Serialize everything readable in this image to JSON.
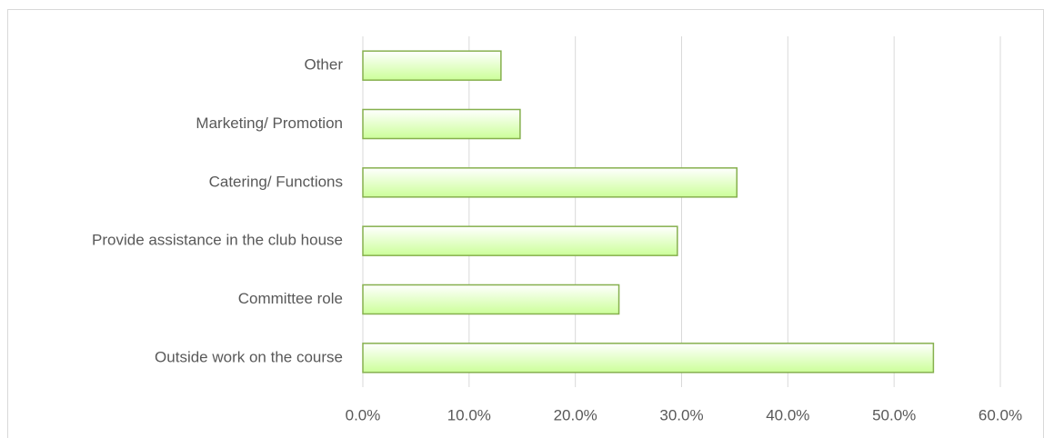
{
  "chart_data": {
    "type": "bar",
    "orientation": "horizontal",
    "categories": [
      "Other",
      "Marketing/ Promotion",
      "Catering/ Functions",
      "Provide assistance in the club house",
      "Committee role",
      "Outside work on the course"
    ],
    "values": [
      13.0,
      14.8,
      35.2,
      29.6,
      24.1,
      53.7
    ],
    "color": "#ccff99",
    "edge_color": "#86b04e",
    "xlim": [
      0,
      60
    ],
    "xticks": [
      {
        "value": 0,
        "label": "0.0%"
      },
      {
        "value": 10,
        "label": "10.0%"
      },
      {
        "value": 20,
        "label": "20.0%"
      },
      {
        "value": 30,
        "label": "30.0%"
      },
      {
        "value": 40,
        "label": "40.0%"
      },
      {
        "value": 50,
        "label": "50.0%"
      },
      {
        "value": 60,
        "label": "60.0%"
      }
    ],
    "grid": true
  }
}
